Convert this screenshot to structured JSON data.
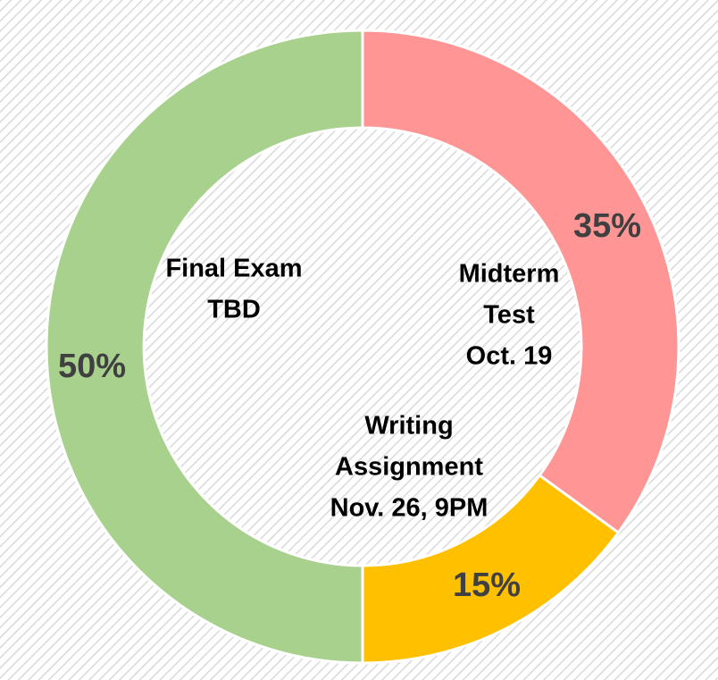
{
  "chart_data": {
    "type": "donut",
    "categories": [
      [
        "Midterm",
        "Test",
        "Oct. 19"
      ],
      [
        "Writing",
        "Assignment",
        "Nov. 26, 9PM"
      ],
      [
        "Final Exam",
        "TBD"
      ]
    ],
    "values": [
      35,
      15,
      50
    ],
    "value_labels": [
      "35%",
      "15%",
      "50%"
    ],
    "colors": [
      "#ff9595",
      "#ffc000",
      "#a9d18e"
    ]
  }
}
